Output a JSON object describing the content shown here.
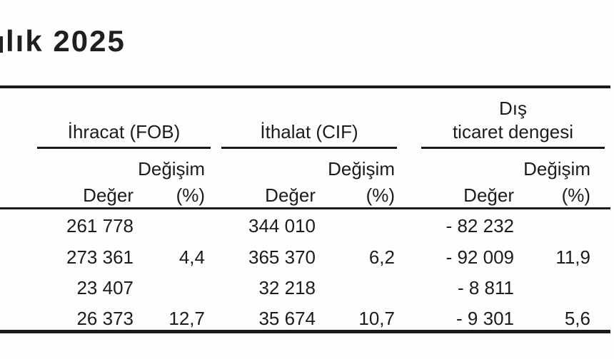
{
  "title": "lık 2025",
  "colors": {
    "text": "#1c1c1c",
    "rule": "#1a1a1a",
    "background": "#fdfdfd"
  },
  "table": {
    "groups": [
      {
        "line1": "",
        "line2": "İhracat (FOB)"
      },
      {
        "line1": "",
        "line2": "İthalat (CIF)"
      },
      {
        "line1": "Dış",
        "line2": "ticaret dengesi"
      }
    ],
    "subheaders": {
      "change": "Değişim",
      "value": "Değer",
      "percent": "(%)"
    },
    "rows": [
      {
        "cells": [
          "261 778",
          "",
          "344 010",
          "",
          "- 82 232",
          ""
        ]
      },
      {
        "cells": [
          "273 361",
          "4,4",
          "365 370",
          "6,2",
          "- 92 009",
          "11,9"
        ]
      },
      {
        "cells": [
          "23 407",
          "",
          "32 218",
          "",
          "- 8 811",
          ""
        ]
      },
      {
        "cells": [
          "26 373",
          "12,7",
          "35 674",
          "10,7",
          "- 9 301",
          "5,6"
        ]
      }
    ]
  },
  "chart_data": {
    "type": "table",
    "title": "lık 2025",
    "column_groups": [
      "İhracat (FOB)",
      "İthalat (CIF)",
      "Dış ticaret dengesi"
    ],
    "columns": [
      "İhracat (FOB) Değer",
      "İhracat (FOB) Değişim (%)",
      "İthalat (CIF) Değer",
      "İthalat (CIF) Değişim (%)",
      "Dış ticaret dengesi Değer",
      "Dış ticaret dengesi Değişim (%)"
    ],
    "rows_display": [
      [
        "261 778",
        null,
        "344 010",
        null,
        "- 82 232",
        null
      ],
      [
        "273 361",
        "4,4",
        "365 370",
        "6,2",
        "- 92 009",
        "11,9"
      ],
      [
        "23 407",
        null,
        "32 218",
        null,
        "- 8 811",
        null
      ],
      [
        "26 373",
        "12,7",
        "35 674",
        "10,7",
        "- 9 301",
        "5,6"
      ]
    ],
    "values_numeric": [
      [
        261778,
        null,
        344010,
        null,
        -82232,
        null
      ],
      [
        273361,
        4.4,
        365370,
        6.2,
        -92009,
        11.9
      ],
      [
        23407,
        null,
        32218,
        null,
        -8811,
        null
      ],
      [
        26373,
        12.7,
        35674,
        10.7,
        -9301,
        5.6
      ]
    ]
  }
}
